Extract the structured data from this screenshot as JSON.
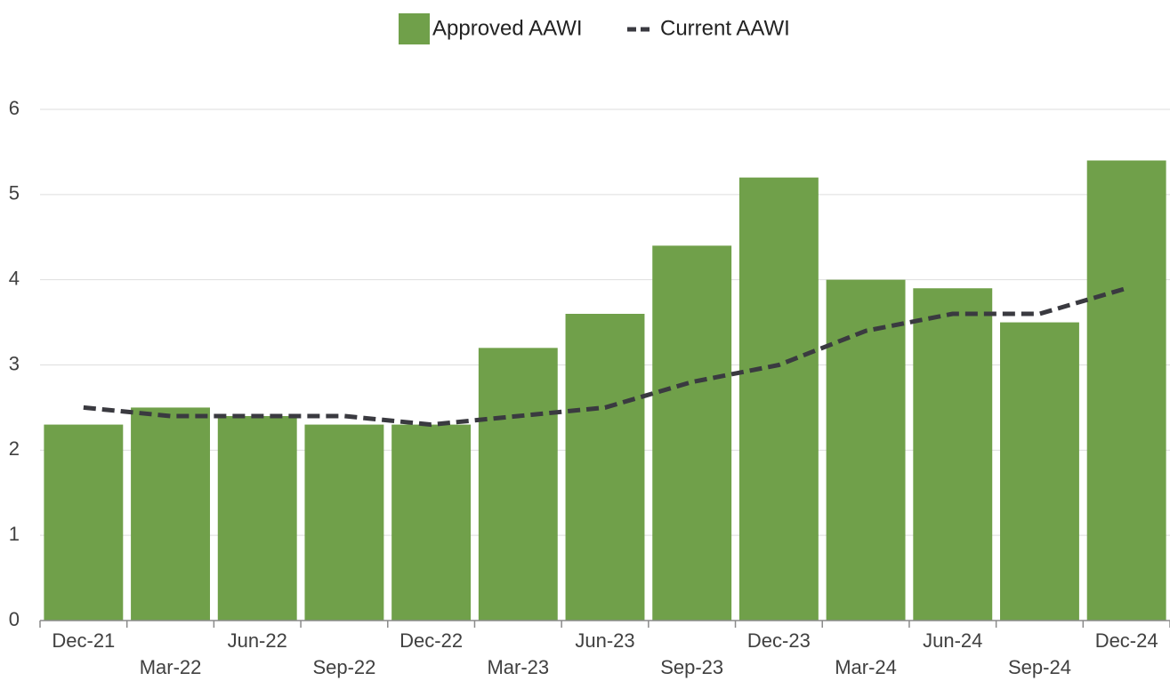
{
  "chart_data": {
    "type": "bar",
    "categories": [
      "Dec-21",
      "Mar-22",
      "Jun-22",
      "Sep-22",
      "Dec-22",
      "Mar-23",
      "Jun-23",
      "Sep-23",
      "Dec-23",
      "Mar-24",
      "Jun-24",
      "Sep-24",
      "Dec-24"
    ],
    "series": [
      {
        "name": "Approved AAWI",
        "type": "bar",
        "color": "#70a04a",
        "values": [
          2.3,
          2.5,
          2.4,
          2.3,
          2.3,
          3.2,
          3.6,
          4.4,
          5.2,
          4.0,
          3.9,
          3.5,
          5.4
        ]
      },
      {
        "name": "Current AAWI",
        "type": "line",
        "color": "#3a3a40",
        "values": [
          2.5,
          2.4,
          2.4,
          2.4,
          2.3,
          2.4,
          2.5,
          2.8,
          3.0,
          3.4,
          3.6,
          3.6,
          3.9
        ]
      }
    ],
    "ylim": [
      0,
      6
    ],
    "yticks": [
      0,
      1,
      2,
      3,
      4,
      5,
      6
    ],
    "grid": true,
    "legend": "top"
  }
}
